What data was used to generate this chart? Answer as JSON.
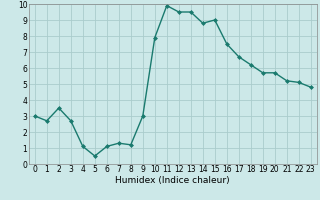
{
  "x": [
    0,
    1,
    2,
    3,
    4,
    5,
    6,
    7,
    8,
    9,
    10,
    11,
    12,
    13,
    14,
    15,
    16,
    17,
    18,
    19,
    20,
    21,
    22,
    23
  ],
  "y": [
    3.0,
    2.7,
    3.5,
    2.7,
    1.1,
    0.5,
    1.1,
    1.3,
    1.2,
    3.0,
    7.9,
    9.9,
    9.5,
    9.5,
    8.8,
    9.0,
    7.5,
    6.7,
    6.2,
    5.7,
    5.7,
    5.2,
    5.1,
    4.8
  ],
  "line_color": "#1a7a6e",
  "marker": "D",
  "marker_size": 2.0,
  "bg_color": "#cce8e8",
  "grid_color": "#aacccc",
  "xlabel": "Humidex (Indice chaleur)",
  "xlim": [
    -0.5,
    23.5
  ],
  "ylim": [
    0,
    10
  ],
  "xticks": [
    0,
    1,
    2,
    3,
    4,
    5,
    6,
    7,
    8,
    9,
    10,
    11,
    12,
    13,
    14,
    15,
    16,
    17,
    18,
    19,
    20,
    21,
    22,
    23
  ],
  "yticks": [
    0,
    1,
    2,
    3,
    4,
    5,
    6,
    7,
    8,
    9,
    10
  ],
  "xlabel_fontsize": 6.5,
  "tick_fontsize": 5.5,
  "line_width": 1.0
}
